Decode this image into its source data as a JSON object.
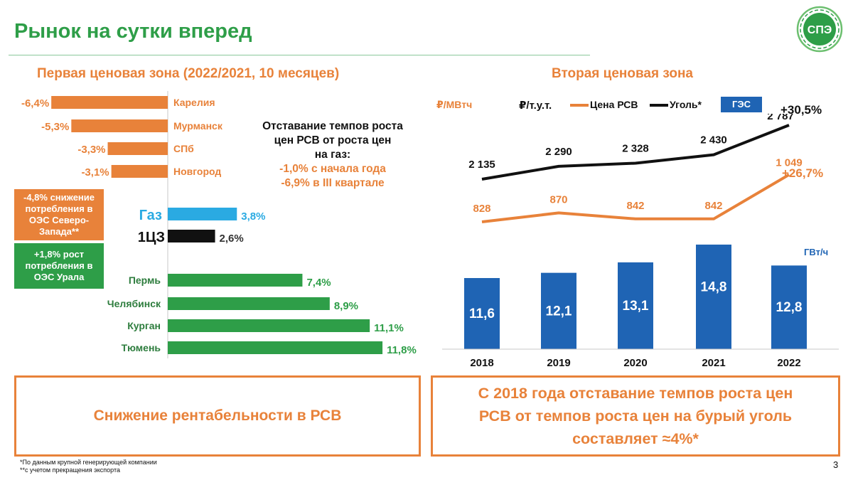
{
  "header": {
    "title": "Рынок на сутки вперед",
    "logo_text": "СПЭ"
  },
  "left": {
    "title": "Первая ценовая зона (2022/2021, 10 месяцев)",
    "note_box_orange": "-4,8% снижение потребления в ОЭС Северо-Запада**",
    "note_box_green": "+1,8% рост потребления в ОЭС Урала",
    "center_text": {
      "line1": "Отставание темпов роста",
      "line2": "цен РСВ от роста цен",
      "line3": "на газ:",
      "line4": "-1,0% с начала года",
      "line5": "-6,9% в III квартале"
    }
  },
  "right": {
    "title": "Вторая ценовая зона",
    "legend": {
      "unit_rub_mwh": "₽/МВтч",
      "unit_rub_tut": "₽/т.у.т.",
      "series_rsv": "Цена РСВ",
      "series_coal": "Уголь*",
      "series_ges": "ГЭС"
    },
    "growth_coal": "+30,5%",
    "growth_rsv": "+26,7%",
    "bar_unit": "ГВт/ч"
  },
  "conclusions": {
    "left": "Снижение рентабельности в РСВ",
    "right_line1": "С 2018 года отставание темпов роста цен",
    "right_line2": "РСВ от темпов роста цен на бурый уголь",
    "right_line3": "составляет ≈4%*"
  },
  "footer": {
    "footnote1": "*По данным крупной генерирующей компании",
    "footnote2": "**с учетом прекращения экспорта",
    "page_number": "3"
  },
  "colors": {
    "green": "#2e9e48",
    "orange": "#e8823a",
    "blue_light": "#2aaae2",
    "blue_dark": "#1f64b4",
    "black": "#111111"
  },
  "chart_data": [
    {
      "type": "bar",
      "orientation": "horizontal",
      "title": "Первая ценовая зона (2022/2021, 10 месяцев)",
      "unit": "%",
      "categories": [
        "Карелия",
        "Мурманск",
        "СПб",
        "Новгород",
        "Газ",
        "1ЦЗ",
        "Пермь",
        "Челябинск",
        "Курган",
        "Тюмень"
      ],
      "values": [
        -6.4,
        -5.3,
        -3.3,
        -3.1,
        3.8,
        2.6,
        7.4,
        8.9,
        11.1,
        11.8
      ],
      "value_labels": [
        "-6,4%",
        "-5,3%",
        "-3,3%",
        "-3,1%",
        "3,8%",
        "2,6%",
        "7,4%",
        "8,9%",
        "11,1%",
        "11,8%"
      ]
    },
    {
      "type": "line",
      "title": "Вторая ценовая зона",
      "x": [
        "2018",
        "2019",
        "2020",
        "2021",
        "2022"
      ],
      "series": [
        {
          "name": "Уголь*",
          "unit": "₽/т.у.т.",
          "values": [
            2135,
            2290,
            2328,
            2430,
            2787
          ],
          "labels": [
            "2 135",
            "2 290",
            "2 328",
            "2 430",
            "2 787"
          ]
        },
        {
          "name": "Цена РСВ",
          "unit": "₽/МВтч",
          "values": [
            828,
            870,
            842,
            842,
            1049
          ],
          "labels": [
            "828",
            "870",
            "842",
            "842",
            "1 049"
          ]
        }
      ]
    },
    {
      "type": "bar",
      "title": "ГЭС",
      "unit": "ГВт/ч",
      "categories": [
        "2018",
        "2019",
        "2020",
        "2021",
        "2022"
      ],
      "values": [
        11.6,
        12.1,
        13.1,
        14.8,
        12.8
      ],
      "value_labels": [
        "11,6",
        "12,1",
        "13,1",
        "14,8",
        "12,8"
      ]
    }
  ]
}
